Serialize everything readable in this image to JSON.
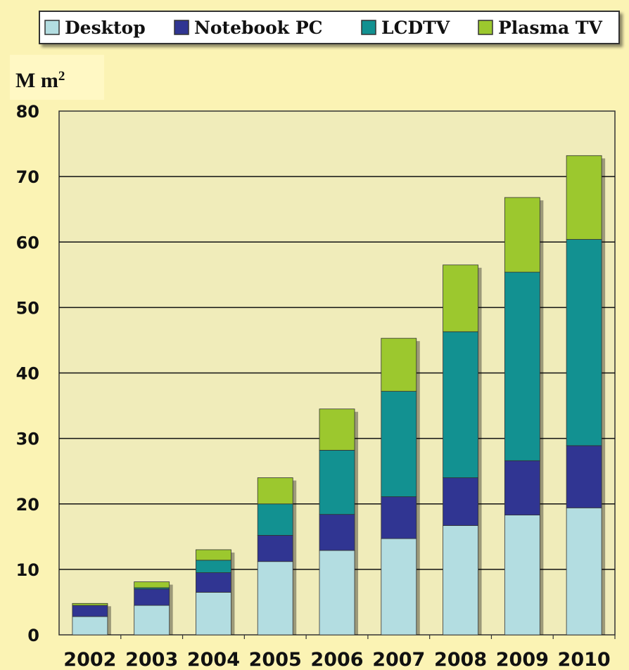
{
  "colors": {
    "page_bg": "#fbf3b4",
    "plot_bg": "#f0ecba",
    "unit_box_bg": "#fff8c4",
    "grid": "#111111",
    "Desktop": "#b3dde1",
    "Notebook PC": "#303592",
    "LCDTV": "#129191",
    "Plasma TV": "#9cc82e"
  },
  "unit_label": "M m",
  "unit_superscript": "2",
  "chart_data": {
    "type": "bar",
    "stacked": true,
    "categories": [
      "2002",
      "2003",
      "2004",
      "2005",
      "2006",
      "2007",
      "2008",
      "2009",
      "2010"
    ],
    "series": [
      {
        "name": "Desktop",
        "values": [
          2.8,
          4.5,
          6.5,
          11.2,
          12.9,
          14.7,
          16.7,
          18.3,
          19.4
        ]
      },
      {
        "name": "Notebook PC",
        "values": [
          1.7,
          2.5,
          3.0,
          4.0,
          5.5,
          6.4,
          7.3,
          8.3,
          9.5
        ]
      },
      {
        "name": "LCDTV",
        "values": [
          0.0,
          0.2,
          1.9,
          4.8,
          9.8,
          16.1,
          22.3,
          28.8,
          31.5
        ]
      },
      {
        "name": "Plasma TV",
        "values": [
          0.3,
          0.9,
          1.6,
          4.0,
          6.3,
          8.1,
          10.2,
          11.4,
          12.8
        ]
      }
    ],
    "ylim": [
      0,
      80
    ],
    "yticks": [
      "0",
      "10",
      "20",
      "30",
      "40",
      "50",
      "60",
      "70",
      "80"
    ],
    "grid": true,
    "legend_position": "top"
  }
}
